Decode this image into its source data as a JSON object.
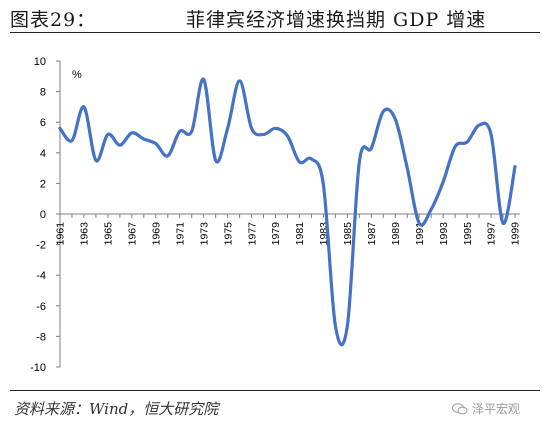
{
  "header": {
    "label": "图表29：",
    "title": "菲律宾经济增速换挡期 GDP 增速"
  },
  "footer": {
    "source": "资料来源：Wind，恒大研究院",
    "watermark": "泽平宏观",
    "watermark_icon": "wechat-icon"
  },
  "chart_data": {
    "type": "line",
    "title": "",
    "xlabel": "",
    "ylabel": "%",
    "ylim": [
      -10,
      10
    ],
    "yticks": [
      -10,
      -8,
      -6,
      -4,
      -2,
      0,
      2,
      4,
      6,
      8,
      10
    ],
    "xticks": [
      "1961",
      "1963",
      "1965",
      "1967",
      "1969",
      "1971",
      "1973",
      "1975",
      "1977",
      "1979",
      "1981",
      "1983",
      "1985",
      "1987",
      "1989",
      "1991",
      "1993",
      "1995",
      "1997",
      "1999"
    ],
    "line_color": "#4472C4",
    "grid": false,
    "series": [
      {
        "name": "",
        "x": [
          1961,
          1962,
          1963,
          1964,
          1965,
          1966,
          1967,
          1968,
          1969,
          1970,
          1971,
          1972,
          1973,
          1974,
          1975,
          1976,
          1977,
          1978,
          1979,
          1980,
          1981,
          1982,
          1983,
          1984,
          1985,
          1986,
          1987,
          1988,
          1989,
          1990,
          1991,
          1992,
          1993,
          1994,
          1995,
          1996,
          1997,
          1998,
          1999
        ],
        "values": [
          5.6,
          4.8,
          7.0,
          3.5,
          5.2,
          4.5,
          5.3,
          4.9,
          4.6,
          3.8,
          5.4,
          5.4,
          8.8,
          3.5,
          5.6,
          8.7,
          5.6,
          5.2,
          5.6,
          5.1,
          3.4,
          3.6,
          1.9,
          -7.3,
          -7.3,
          3.4,
          4.3,
          6.7,
          6.2,
          3.0,
          -0.6,
          0.3,
          2.1,
          4.4,
          4.7,
          5.8,
          5.2,
          -0.6,
          3.1
        ]
      }
    ]
  }
}
